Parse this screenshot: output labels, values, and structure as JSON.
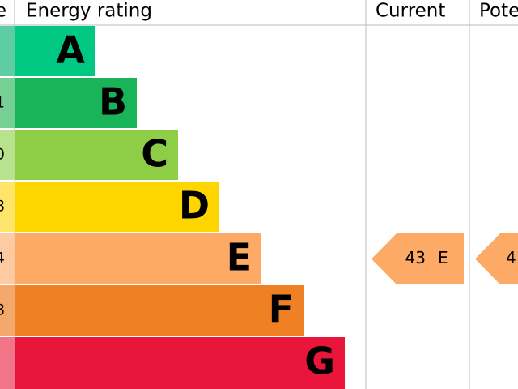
{
  "header": {
    "score": "e",
    "rating": "Energy rating",
    "current": "Current",
    "potential": "Pote"
  },
  "bands": [
    {
      "letter": "A",
      "color": "#00c781",
      "light": "#5fcda3"
    },
    {
      "letter": "B",
      "score": "1",
      "color": "#19b459",
      "light": "#76cf95"
    },
    {
      "letter": "C",
      "score": "0",
      "color": "#8dce46",
      "light": "#b9e28e"
    },
    {
      "letter": "D",
      "score": "8",
      "color": "#ffd500",
      "light": "#ffe46a"
    },
    {
      "letter": "E",
      "score": "4",
      "color": "#fcaa65",
      "light": "#fdcaa1"
    },
    {
      "letter": "F",
      "score": "8",
      "color": "#ef8023",
      "light": "#f4a86b"
    },
    {
      "letter": "G",
      "color": "#e9153b",
      "light": "#f27489"
    }
  ],
  "current": {
    "score": 43,
    "rating": "E",
    "color": "#fcaa65"
  },
  "potential": {
    "score": "4",
    "color": "#fcaa65"
  }
}
